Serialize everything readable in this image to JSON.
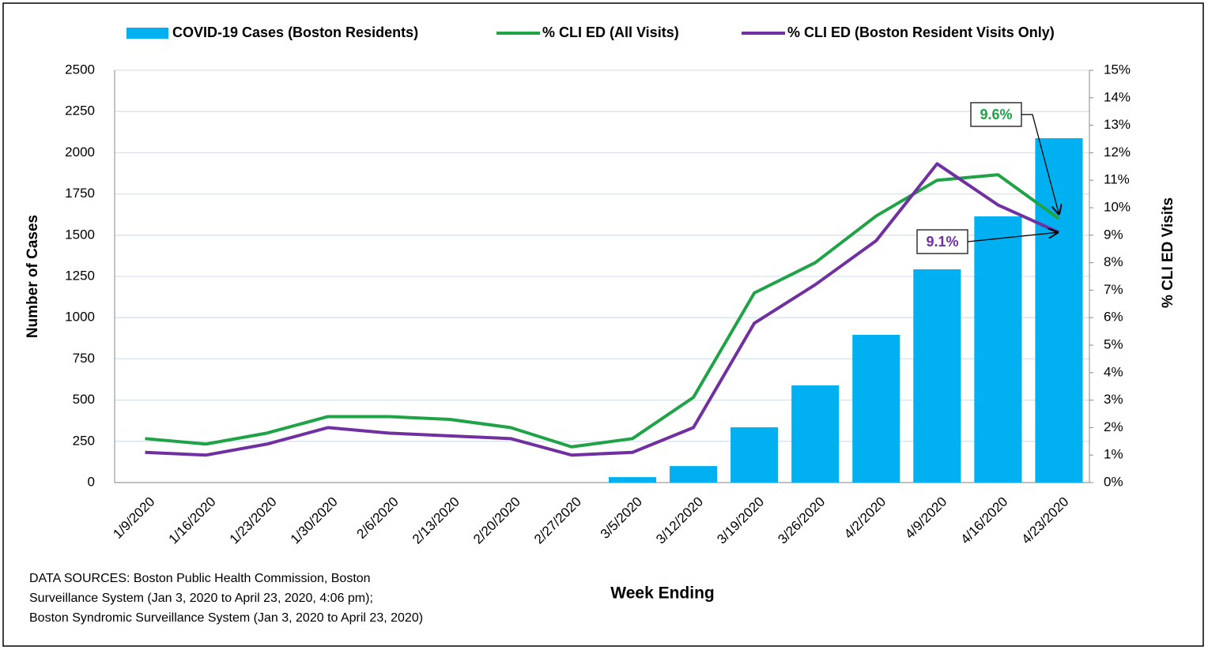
{
  "chart_data": {
    "type": "bar-line",
    "categories": [
      "1/9/2020",
      "1/16/2020",
      "1/23/2020",
      "1/30/2020",
      "2/6/2020",
      "2/13/2020",
      "2/20/2020",
      "2/27/2020",
      "3/5/2020",
      "3/12/2020",
      "3/19/2020",
      "3/26/2020",
      "4/2/2020",
      "4/9/2020",
      "4/16/2020",
      "4/23/2020"
    ],
    "series": [
      {
        "name": "COVID-19 Cases (Boston Residents)",
        "type": "bar",
        "color": "#00b0f0",
        "axis": "y",
        "values": [
          0,
          0,
          0,
          0,
          0,
          0,
          0,
          0,
          33,
          100,
          335,
          589,
          896,
          1293,
          1614,
          2088
        ]
      },
      {
        "name": "% CLI ED (All Visits)",
        "type": "line",
        "color": "#1fa346",
        "axis": "y2",
        "values": [
          1.6,
          1.4,
          1.8,
          2.4,
          2.4,
          2.3,
          2.0,
          1.3,
          1.6,
          3.1,
          6.9,
          8.0,
          9.7,
          11.0,
          11.2,
          9.6
        ],
        "value_labels": [
          null,
          null,
          null,
          null,
          null,
          null,
          null,
          null,
          null,
          null,
          null,
          null,
          null,
          null,
          null,
          "9.6%"
        ]
      },
      {
        "name": "% CLI ED (Boston Resident Visits Only)",
        "type": "line",
        "color": "#7030a0",
        "axis": "y2",
        "values": [
          1.1,
          1.0,
          1.4,
          2.0,
          1.8,
          1.7,
          1.6,
          1.0,
          1.1,
          2.0,
          5.8,
          7.2,
          8.8,
          11.6,
          10.1,
          9.1
        ],
        "value_labels": [
          null,
          null,
          null,
          null,
          null,
          null,
          null,
          null,
          null,
          null,
          null,
          null,
          null,
          null,
          null,
          "9.1%"
        ]
      }
    ],
    "ylim": [
      0,
      2500
    ],
    "yticks": [
      0,
      250,
      500,
      750,
      1000,
      1250,
      1500,
      1750,
      2000,
      2250,
      2500
    ],
    "y2lim": [
      0,
      15
    ],
    "y2ticks": [
      {
        "value": 0,
        "label": "0%"
      },
      {
        "value": 1,
        "label": "1%"
      },
      {
        "value": 2,
        "label": "2%"
      },
      {
        "value": 3,
        "label": "3%"
      },
      {
        "value": 4,
        "label": "4%"
      },
      {
        "value": 5,
        "label": "5%"
      },
      {
        "value": 6,
        "label": "6%"
      },
      {
        "value": 7,
        "label": "7%"
      },
      {
        "value": 8,
        "label": "8%"
      },
      {
        "value": 9,
        "label": "9%"
      },
      {
        "value": 10,
        "label": "10%"
      },
      {
        "value": 11,
        "label": "11%"
      },
      {
        "value": 12,
        "label": "12%"
      },
      {
        "value": 13,
        "label": "13%"
      },
      {
        "value": 14,
        "label": "14%"
      },
      {
        "value": 15,
        "label": "15%"
      }
    ],
    "y_label": "Number of Cases",
    "y2_label": "% CLI ED Visits",
    "x_label": "Week Ending",
    "source": [
      "DATA SOURCES: Boston Public Health Commission, Boston",
      "Surveillance System (Jan 3, 2020 to April 23, 2020, 4:06 pm);",
      "Boston Syndromic Surveillance System (Jan 3, 2020 to April 23, 2020)"
    ],
    "grid": true,
    "legend": "top"
  }
}
